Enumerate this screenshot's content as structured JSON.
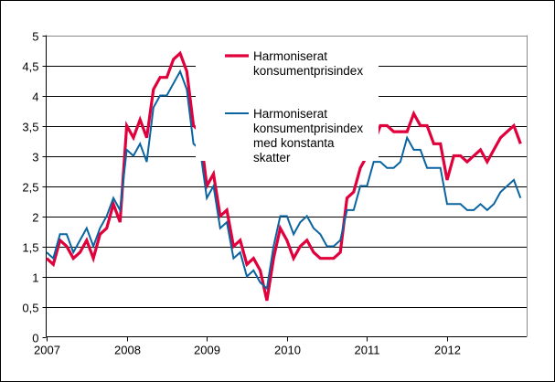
{
  "chart_data": {
    "type": "line",
    "title": "",
    "xlabel": "",
    "ylabel": "",
    "ylim": [
      0,
      5
    ],
    "yticks": [
      "0",
      "0,5",
      "1",
      "1,5",
      "2",
      "2,5",
      "3",
      "3,5",
      "4",
      "4,5",
      "5"
    ],
    "xticks": [
      "2007",
      "2008",
      "2009",
      "2010",
      "2011",
      "2012"
    ],
    "grid": true,
    "legend_position": "inside-top-center",
    "frequency": "monthly",
    "x_start": "2007-01",
    "series": [
      {
        "name": "Harmoniserat konsumentprisindex",
        "color": "#e0003c",
        "values": [
          1.3,
          1.2,
          1.6,
          1.5,
          1.3,
          1.4,
          1.6,
          1.3,
          1.7,
          1.8,
          2.2,
          1.9,
          3.5,
          3.3,
          3.6,
          3.3,
          4.1,
          4.3,
          4.3,
          4.6,
          4.7,
          4.4,
          3.5,
          3.4,
          2.5,
          2.7,
          2.0,
          2.1,
          1.5,
          1.6,
          1.2,
          1.3,
          1.1,
          0.6,
          1.3,
          1.8,
          1.6,
          1.3,
          1.5,
          1.6,
          1.4,
          1.3,
          1.3,
          1.3,
          1.4,
          2.3,
          2.4,
          2.8,
          3.0,
          3.2,
          3.5,
          3.5,
          3.4,
          3.4,
          3.4,
          3.7,
          3.5,
          3.5,
          3.2,
          3.2,
          2.6,
          3.0,
          3.0,
          2.9,
          3.0,
          3.1,
          2.9,
          3.1,
          3.3,
          3.4,
          3.5,
          3.2
        ]
      },
      {
        "name": "Harmoniserat konsumentprisindex med konstanta skatter",
        "color": "#0a64a0",
        "values": [
          1.4,
          1.3,
          1.7,
          1.7,
          1.4,
          1.6,
          1.8,
          1.5,
          1.8,
          2.0,
          2.3,
          2.1,
          3.1,
          3.0,
          3.2,
          2.9,
          3.8,
          4.0,
          4.0,
          4.2,
          4.4,
          4.1,
          3.2,
          3.1,
          2.3,
          2.5,
          1.8,
          1.9,
          1.3,
          1.4,
          1.0,
          1.1,
          0.9,
          0.8,
          1.5,
          2.0,
          2.0,
          1.7,
          1.9,
          2.0,
          1.8,
          1.7,
          1.5,
          1.5,
          1.6,
          2.1,
          2.1,
          2.5,
          2.5,
          2.9,
          2.9,
          2.8,
          2.8,
          2.9,
          3.3,
          3.1,
          3.1,
          2.8,
          2.8,
          2.8,
          2.2,
          2.2,
          2.2,
          2.1,
          2.1,
          2.2,
          2.1,
          2.2,
          2.4,
          2.5,
          2.6,
          2.3
        ]
      }
    ]
  },
  "legend": {
    "items": [
      {
        "lines": [
          "Harmoniserat",
          "konsumentprisindex"
        ]
      },
      {
        "lines": [
          "Harmoniserat",
          "konsumentprisindex",
          "med konstanta",
          "skatter"
        ]
      }
    ]
  }
}
